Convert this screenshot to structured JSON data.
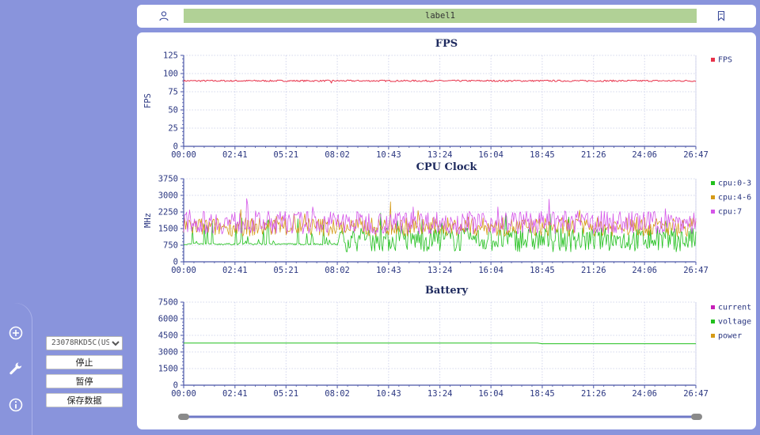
{
  "topbar": {
    "label": "label1"
  },
  "controls": {
    "device": "23078RKD5C(USB)",
    "stop_label": "停止",
    "pause_label": "暂停",
    "save_label": "保存数据"
  },
  "time_axis": [
    "00:00",
    "02:41",
    "05:21",
    "08:02",
    "10:43",
    "13:24",
    "16:04",
    "18:45",
    "21:26",
    "24:06",
    "26:47"
  ],
  "colors": {
    "background": "#8994dc",
    "fps": "#e8324a",
    "cpu0_3": "#22c01e",
    "cpu4_6": "#d59a16",
    "cpu7": "#d455e8",
    "current": "#c61fb8",
    "voltage": "#22c01e",
    "power": "#d59a16",
    "axis": "#4a56a8",
    "title": "#1e2a5e"
  },
  "chart_data": [
    {
      "type": "line",
      "title": "FPS",
      "ylabel": "FPS",
      "ylim": [
        0,
        125
      ],
      "yticks": [
        "0",
        "25",
        "50",
        "75",
        "100",
        "125"
      ],
      "grid": true,
      "legend_position": "right",
      "x_range": [
        "00:00",
        "26:47"
      ],
      "series": [
        {
          "name": "FPS",
          "color": "#e8324a",
          "mean": 90,
          "range": [
            87,
            92
          ],
          "values_summary": "steady at about 90 fps for the whole recording"
        }
      ]
    },
    {
      "type": "line",
      "title": "CPU Clock",
      "ylabel": "MHz",
      "ylim": [
        0,
        3750
      ],
      "yticks": [
        "0",
        "750",
        "1500",
        "2250",
        "3000",
        "3750"
      ],
      "grid": true,
      "legend_position": "right",
      "x_range": [
        "00:00",
        "26:47"
      ],
      "series": [
        {
          "name": "cpu:0-3",
          "color": "#22c01e",
          "range": [
            300,
            2500
          ],
          "values_summary": "fluctuates mostly between 400 and 1500 MHz; near 800 MHz in the first ~8 minutes"
        },
        {
          "name": "cpu:4-6",
          "color": "#d59a16",
          "range": [
            700,
            2800
          ],
          "values_summary": "fluctuates mostly between 1100 and 2000 MHz"
        },
        {
          "name": "cpu:7",
          "color": "#d455e8",
          "range": [
            700,
            3000
          ],
          "values_summary": "fluctuates mostly between 1200 and 2400 MHz, peaks near 3000 MHz around 20:00"
        }
      ]
    },
    {
      "type": "line",
      "title": "Battery",
      "ylabel": "",
      "ylim": [
        0,
        7500
      ],
      "yticks": [
        "0",
        "1500",
        "3000",
        "4500",
        "6000",
        "7500"
      ],
      "grid": true,
      "legend_position": "right",
      "x_range": [
        "00:00",
        "26:47"
      ],
      "series": [
        {
          "name": "current",
          "color": "#c61fb8"
        },
        {
          "name": "voltage",
          "color": "#22c01e",
          "x": [
            "00:00",
            "18:30",
            "18:45",
            "26:47"
          ],
          "values": [
            3800,
            3800,
            3740,
            3740
          ]
        },
        {
          "name": "power",
          "color": "#d59a16"
        }
      ]
    }
  ]
}
